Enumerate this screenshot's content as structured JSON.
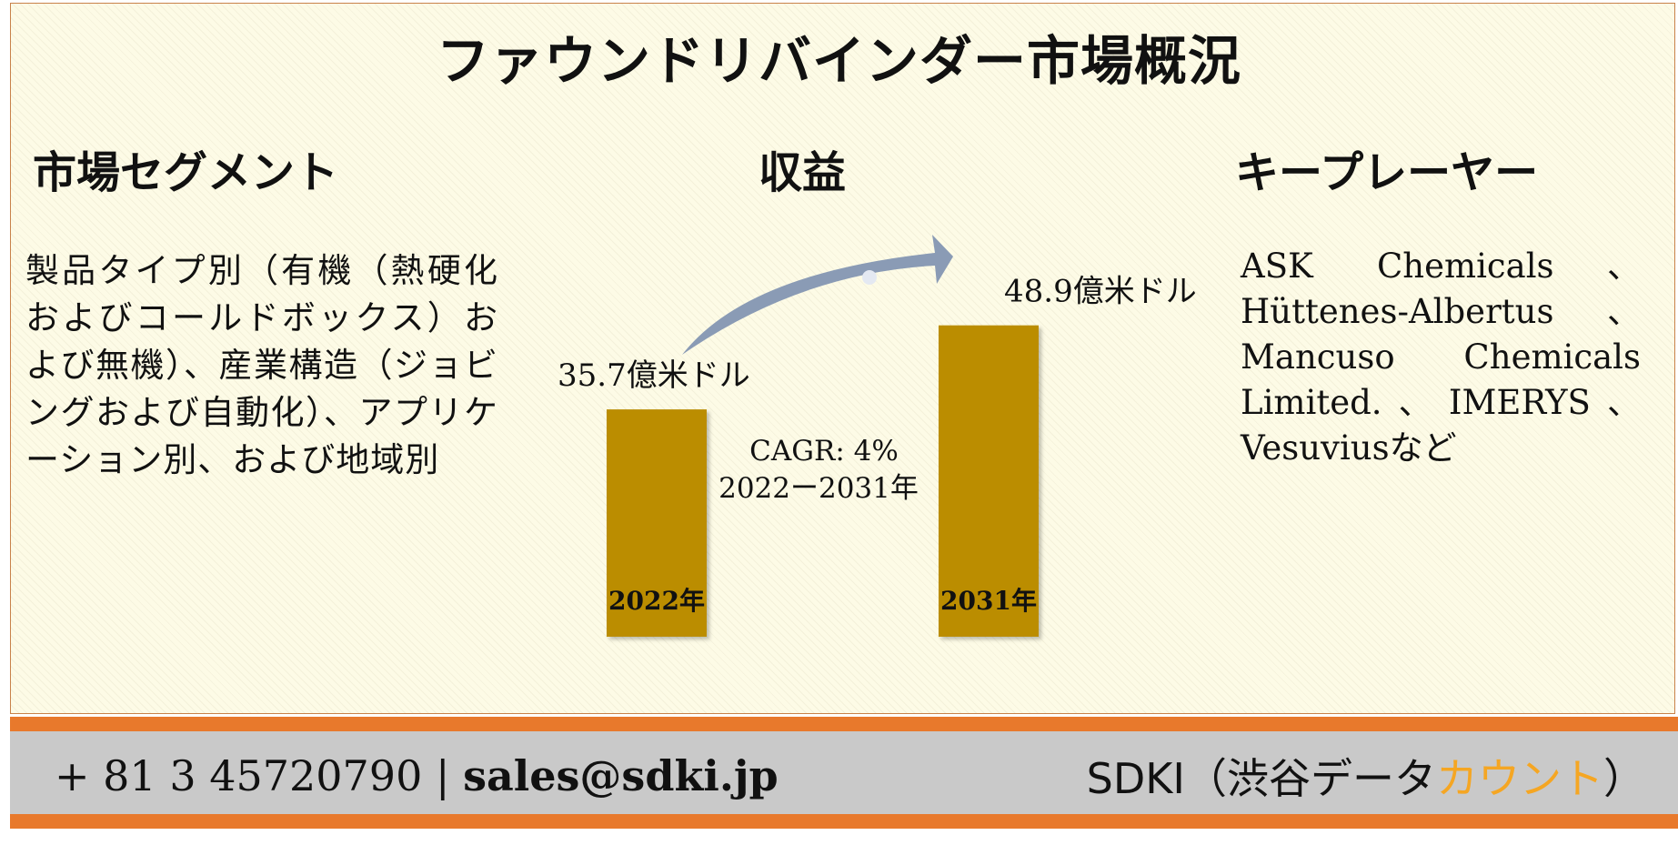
{
  "title": "ファウンドリバインダー市場概況",
  "sections": {
    "segment": {
      "heading": "市場セグメント",
      "body": "製品タイプ別（有機（熱硬化およびコールドボックス）および無機）、産業構造（ジョビングおよび自動化）、アプリケーション別、および地域別"
    },
    "revenue": {
      "heading": "収益"
    },
    "players": {
      "heading": "キープレーヤー",
      "body": "ASK Chemicals、Hüttenes-Albertus、Mancuso Chemicals Limited.、IMERYS、Vesuviusなど"
    }
  },
  "chart_data": {
    "type": "bar",
    "categories": [
      "2022年",
      "2031年"
    ],
    "values": [
      35.7,
      48.9
    ],
    "value_labels": [
      "35.7億米ドル",
      "48.9億米ドル"
    ],
    "unit": "億米ドル",
    "cagr_label": "CAGR: 4%",
    "cagr_period": "2022ー2031年",
    "bar_color": "#bb8d00",
    "arrow_color": "#8a9bb5"
  },
  "footer": {
    "phone": "+ 81 3 45720790",
    "separator": "|",
    "email": "sales@sdki.jp",
    "brand_prefix": "SDKI（渋谷データ",
    "brand_highlight": "カウント",
    "brand_suffix": "）",
    "accent_color": "#e8792c",
    "highlight_color": "#f5a623"
  }
}
